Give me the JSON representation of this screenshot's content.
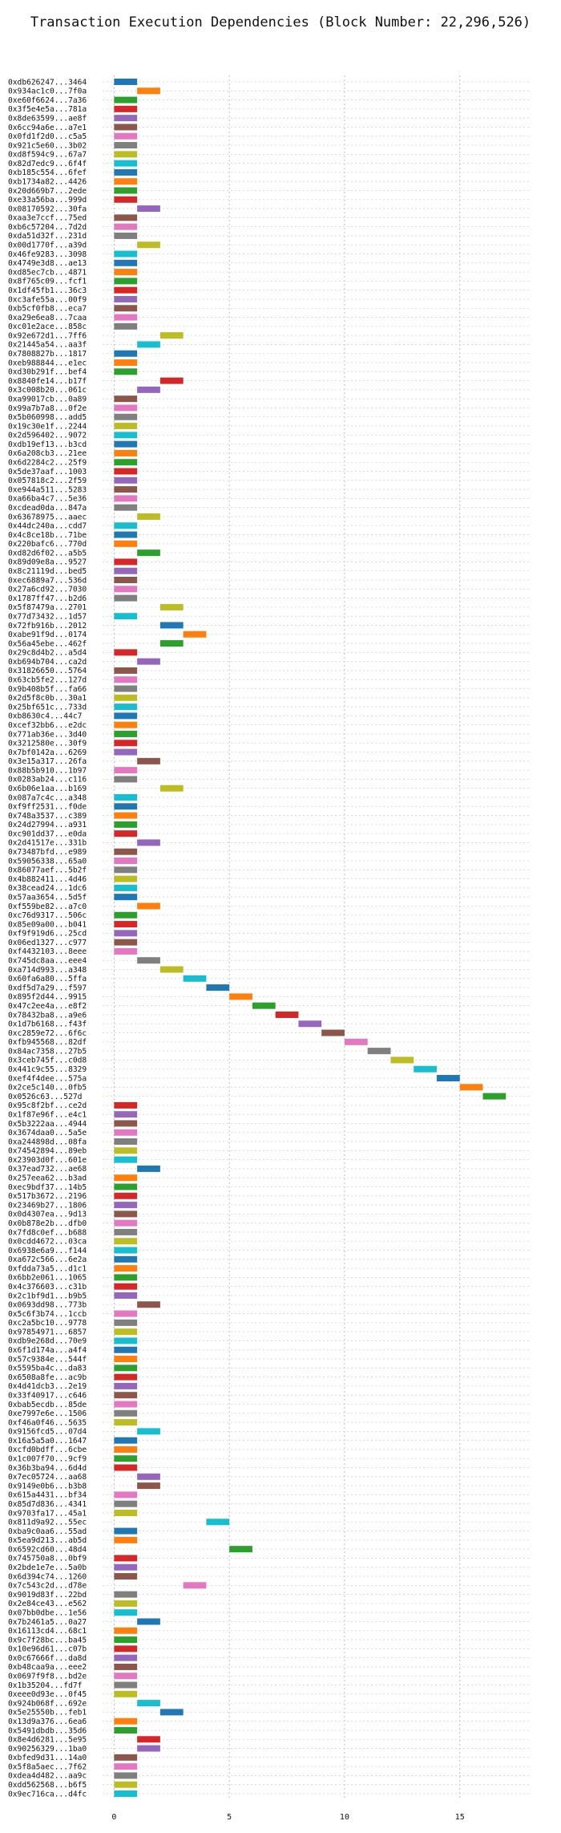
{
  "chart_data": {
    "type": "bar",
    "orientation": "horizontal",
    "title": "Transaction Execution Dependencies (Block Number: 22,296,526)",
    "xlabel": "",
    "ylabel": "",
    "xlim": [
      -0.5,
      18
    ],
    "xticks": [
      0,
      5,
      10,
      15
    ],
    "grid": true,
    "palette": [
      "#1f77b4",
      "#ff7f0e",
      "#2ca02c",
      "#d62728",
      "#9467bd",
      "#8c564b",
      "#e377c2",
      "#7f7f7f",
      "#bcbd22",
      "#17becf"
    ],
    "transactions": [
      {
        "label": "0xdb626247...3464",
        "start": 0
      },
      {
        "label": "0x934ac1c0...7f0a",
        "start": 1
      },
      {
        "label": "0xe60f6624...7a36",
        "start": 0
      },
      {
        "label": "0x3f5e4e5a...781a",
        "start": 0
      },
      {
        "label": "0x8de63599...ae8f",
        "start": 0
      },
      {
        "label": "0x6cc94a6e...a7e1",
        "start": 0
      },
      {
        "label": "0x0fd1f2d0...c5a5",
        "start": 0
      },
      {
        "label": "0x921c5e60...3b02",
        "start": 0
      },
      {
        "label": "0xd8f594c9...67a7",
        "start": 0
      },
      {
        "label": "0x82d7edc9...6f4f",
        "start": 0
      },
      {
        "label": "0xb185c554...6fef",
        "start": 0
      },
      {
        "label": "0xb1734a82...4426",
        "start": 0
      },
      {
        "label": "0x20d669b7...2ede",
        "start": 0
      },
      {
        "label": "0xe33a56ba...999d",
        "start": 0
      },
      {
        "label": "0x08170592...30fa",
        "start": 1
      },
      {
        "label": "0xaa3e7ccf...75ed",
        "start": 0
      },
      {
        "label": "0xb6c57204...7d2d",
        "start": 0
      },
      {
        "label": "0xda51d32f...231d",
        "start": 0
      },
      {
        "label": "0x00d1770f...a39d",
        "start": 1
      },
      {
        "label": "0x46fe9283...3098",
        "start": 0
      },
      {
        "label": "0x4749e3d8...ae13",
        "start": 0
      },
      {
        "label": "0xd85ec7cb...4871",
        "start": 0
      },
      {
        "label": "0x8f765c09...fcf1",
        "start": 0
      },
      {
        "label": "0x1df45fb1...36c3",
        "start": 0
      },
      {
        "label": "0xc3afe55a...00f9",
        "start": 0
      },
      {
        "label": "0xb5cf0fb8...eca7",
        "start": 0
      },
      {
        "label": "0xa29e6ea8...7caa",
        "start": 0
      },
      {
        "label": "0xc01e2ace...858c",
        "start": 0
      },
      {
        "label": "0x92e672d1...7ff6",
        "start": 2
      },
      {
        "label": "0x21445a54...aa3f",
        "start": 1
      },
      {
        "label": "0x7808827b...1817",
        "start": 0
      },
      {
        "label": "0xeb988844...e1ec",
        "start": 0
      },
      {
        "label": "0xd30b291f...bef4",
        "start": 0
      },
      {
        "label": "0x8840fe14...b17f",
        "start": 2
      },
      {
        "label": "0x3c008b20...061c",
        "start": 1
      },
      {
        "label": "0xa99017cb...0a89",
        "start": 0
      },
      {
        "label": "0x99a7b7a8...0f2e",
        "start": 0
      },
      {
        "label": "0x5b060998...add5",
        "start": 0
      },
      {
        "label": "0x19c30e1f...2244",
        "start": 0
      },
      {
        "label": "0x2d596402...9072",
        "start": 0
      },
      {
        "label": "0xdb19ef13...b3cd",
        "start": 0
      },
      {
        "label": "0x6a208cb3...21ee",
        "start": 0
      },
      {
        "label": "0x6d2284c2...25f9",
        "start": 0
      },
      {
        "label": "0x5de37aaf...1003",
        "start": 0
      },
      {
        "label": "0x057818c2...2f59",
        "start": 0
      },
      {
        "label": "0xe944a511...5283",
        "start": 0
      },
      {
        "label": "0xa66ba4c7...5e36",
        "start": 0
      },
      {
        "label": "0xcdead0da...847a",
        "start": 0
      },
      {
        "label": "0x63678975...aaec",
        "start": 1
      },
      {
        "label": "0x44dc240a...cdd7",
        "start": 0
      },
      {
        "label": "0x4c8ce18b...71be",
        "start": 0
      },
      {
        "label": "0x220bafc6...770d",
        "start": 0
      },
      {
        "label": "0xd82d6f02...a5b5",
        "start": 1
      },
      {
        "label": "0x89d09e8a...9527",
        "start": 0
      },
      {
        "label": "0x8c21119d...bed5",
        "start": 0
      },
      {
        "label": "0xec6889a7...536d",
        "start": 0
      },
      {
        "label": "0x27a6cd92...7030",
        "start": 0
      },
      {
        "label": "0x1787ff47...b2d6",
        "start": 0
      },
      {
        "label": "0x5f87479a...2701",
        "start": 2
      },
      {
        "label": "0x77d73432...1d57",
        "start": 0
      },
      {
        "label": "0x72fb916b...2012",
        "start": 2
      },
      {
        "label": "0xabe91f9d...0174",
        "start": 3
      },
      {
        "label": "0x56a45ebe...462f",
        "start": 2
      },
      {
        "label": "0x29c8d4b2...a5d4",
        "start": 0
      },
      {
        "label": "0xb694b704...ca2d",
        "start": 1
      },
      {
        "label": "0x31826650...5764",
        "start": 0
      },
      {
        "label": "0x63cb5fe2...127d",
        "start": 0
      },
      {
        "label": "0x9b408b5f...fa66",
        "start": 0
      },
      {
        "label": "0x2d5f8c0b...30a1",
        "start": 0
      },
      {
        "label": "0x25bf651c...733d",
        "start": 0
      },
      {
        "label": "0xb8630c4...44c7",
        "start": 0
      },
      {
        "label": "0xcef32bb6...e2dc",
        "start": 0
      },
      {
        "label": "0x771ab36e...3d40",
        "start": 0
      },
      {
        "label": "0x3212580e...30f9",
        "start": 0
      },
      {
        "label": "0x7bf0142a...6269",
        "start": 0
      },
      {
        "label": "0x3e15a317...26fa",
        "start": 1
      },
      {
        "label": "0x88b5b910...1b97",
        "start": 0
      },
      {
        "label": "0x0283ab24...c116",
        "start": 0
      },
      {
        "label": "0x6b06e1aa...b169",
        "start": 2
      },
      {
        "label": "0x087a7c4c...a348",
        "start": 0
      },
      {
        "label": "0xf9ff2531...f0de",
        "start": 0
      },
      {
        "label": "0x748a3537...c389",
        "start": 0
      },
      {
        "label": "0x24d27994...a931",
        "start": 0
      },
      {
        "label": "0xc901dd37...e0da",
        "start": 0
      },
      {
        "label": "0x2d41517e...331b",
        "start": 1
      },
      {
        "label": "0x73487bfd...e989",
        "start": 0
      },
      {
        "label": "0x59056338...65a0",
        "start": 0
      },
      {
        "label": "0x86077aef...5b2f",
        "start": 0
      },
      {
        "label": "0x4b882411...4d46",
        "start": 0
      },
      {
        "label": "0x38cead24...1dc6",
        "start": 0
      },
      {
        "label": "0x57aa3654...5d5f",
        "start": 0
      },
      {
        "label": "0xf559be82...a7c0",
        "start": 1
      },
      {
        "label": "0xc76d9317...506c",
        "start": 0
      },
      {
        "label": "0x85e09a00...b041",
        "start": 0
      },
      {
        "label": "0xf9f919d6...25cd",
        "start": 0
      },
      {
        "label": "0x06ed1327...c977",
        "start": 0
      },
      {
        "label": "0xf4432103...8eee",
        "start": 0
      },
      {
        "label": "0x745dc8aa...eee4",
        "start": 1
      },
      {
        "label": "0xa714d993...a348",
        "start": 2
      },
      {
        "label": "0x60fa6a80...5ffa",
        "start": 3
      },
      {
        "label": "0xdf5d7a29...f597",
        "start": 4
      },
      {
        "label": "0x895f2d44...9915",
        "start": 5
      },
      {
        "label": "0x47c2ee4a...e8f2",
        "start": 6
      },
      {
        "label": "0x78432ba8...a9e6",
        "start": 7
      },
      {
        "label": "0x1d7b6168...f43f",
        "start": 8
      },
      {
        "label": "0xc2859e72...6f6c",
        "start": 9
      },
      {
        "label": "0xfb945568...82df",
        "start": 10
      },
      {
        "label": "0x84ac7358...27b5",
        "start": 11
      },
      {
        "label": "0x3ceb745f...c0d8",
        "start": 12
      },
      {
        "label": "0x441c9c55...8329",
        "start": 13
      },
      {
        "label": "0xef4f4dee...575a",
        "start": 14
      },
      {
        "label": "0x2ce5c140...0fb5",
        "start": 15
      },
      {
        "label": "0x0526c63...527d",
        "start": 16
      },
      {
        "label": "0x95c8f2bf...ce2d",
        "start": 0
      },
      {
        "label": "0x1f87e96f...e4c1",
        "start": 0
      },
      {
        "label": "0x5b3222aa...4944",
        "start": 0
      },
      {
        "label": "0x3674daa0...5a5e",
        "start": 0
      },
      {
        "label": "0xa244898d...08fa",
        "start": 0
      },
      {
        "label": "0x74542894...89eb",
        "start": 0
      },
      {
        "label": "0x23903d0f...601e",
        "start": 0
      },
      {
        "label": "0x37ead732...ae68",
        "start": 1
      },
      {
        "label": "0x257eea62...b3ad",
        "start": 0
      },
      {
        "label": "0xec9bdf37...14b5",
        "start": 0
      },
      {
        "label": "0x517b3672...2196",
        "start": 0
      },
      {
        "label": "0x23469b27...1806",
        "start": 0
      },
      {
        "label": "0x0d4307ea...9d13",
        "start": 0
      },
      {
        "label": "0x0b878e2b...dfb0",
        "start": 0
      },
      {
        "label": "0x7fd8c0ef...b688",
        "start": 0
      },
      {
        "label": "0x0cdd4672...03ca",
        "start": 0
      },
      {
        "label": "0x6938e6a9...f144",
        "start": 0
      },
      {
        "label": "0xa672c566...6e2a",
        "start": 0
      },
      {
        "label": "0xfdda73a5...d1c1",
        "start": 0
      },
      {
        "label": "0x6bb2e061...1065",
        "start": 0
      },
      {
        "label": "0x4c376603...c31b",
        "start": 0
      },
      {
        "label": "0x2c1bf9d1...b9b5",
        "start": 0
      },
      {
        "label": "0x0693dd98...773b",
        "start": 1
      },
      {
        "label": "0x5c6f3b74...1ccb",
        "start": 0
      },
      {
        "label": "0xc2a5bc10...9778",
        "start": 0
      },
      {
        "label": "0x97854971...6857",
        "start": 0
      },
      {
        "label": "0xdb9e268d...70e9",
        "start": 0
      },
      {
        "label": "0x6f1d174a...a4f4",
        "start": 0
      },
      {
        "label": "0x57c9384e...544f",
        "start": 0
      },
      {
        "label": "0x5595ba4c...da83",
        "start": 0
      },
      {
        "label": "0x6508a8fe...ac9b",
        "start": 0
      },
      {
        "label": "0x4d41dcb3...2e19",
        "start": 0
      },
      {
        "label": "0x33f40917...c646",
        "start": 0
      },
      {
        "label": "0xbab5ecdb...85de",
        "start": 0
      },
      {
        "label": "0xe7997e6e...1506",
        "start": 0
      },
      {
        "label": "0xf46a0f46...5635",
        "start": 0
      },
      {
        "label": "0x9156fcd5...07d4",
        "start": 1
      },
      {
        "label": "0x16a5a5a0...1647",
        "start": 0
      },
      {
        "label": "0xcfd0bdff...6cbe",
        "start": 0
      },
      {
        "label": "0x1c007f70...9cf9",
        "start": 0
      },
      {
        "label": "0x36b3ba94...6d4d",
        "start": 0
      },
      {
        "label": "0x7ec05724...aa68",
        "start": 1
      },
      {
        "label": "0x9149e0b6...b3b8",
        "start": 1
      },
      {
        "label": "0x615a4431...bf34",
        "start": 0
      },
      {
        "label": "0x85d7d836...4341",
        "start": 0
      },
      {
        "label": "0x9703fa17...45a1",
        "start": 0
      },
      {
        "label": "0x811d9a92...55ec",
        "start": 4
      },
      {
        "label": "0xba9c0aa6...55ad",
        "start": 0
      },
      {
        "label": "0x5ea9d213...ab5d",
        "start": 0
      },
      {
        "label": "0x6592cd60...48d4",
        "start": 5
      },
      {
        "label": "0x745750a8...0bf9",
        "start": 0
      },
      {
        "label": "0x2bde1e7e...5a0b",
        "start": 0
      },
      {
        "label": "0x6d394c74...1260",
        "start": 0
      },
      {
        "label": "0x7c543c2d...d78e",
        "start": 3
      },
      {
        "label": "0x9019d83f...22bd",
        "start": 0
      },
      {
        "label": "0x2e84ce43...e562",
        "start": 0
      },
      {
        "label": "0x07bb0dbe...1e56",
        "start": 0
      },
      {
        "label": "0x7b2461a5...0a27",
        "start": 1
      },
      {
        "label": "0x16113cd4...68c1",
        "start": 0
      },
      {
        "label": "0x9c7f28bc...ba45",
        "start": 0
      },
      {
        "label": "0x10e96d61...c07b",
        "start": 0
      },
      {
        "label": "0x0c67666f...da8d",
        "start": 0
      },
      {
        "label": "0xb48caa9a...eee2",
        "start": 0
      },
      {
        "label": "0x0697f9f8...bd2e",
        "start": 0
      },
      {
        "label": "0x1b35204...fd7f",
        "start": 0
      },
      {
        "label": "0xeee0d93e...0f45",
        "start": 0
      },
      {
        "label": "0x924b068f...692e",
        "start": 1
      },
      {
        "label": "0x5e25550b...feb1",
        "start": 2
      },
      {
        "label": "0x13d9a376...6ea6",
        "start": 0
      },
      {
        "label": "0x5491dbdb...35d6",
        "start": 0
      },
      {
        "label": "0x8e4d6281...5e95",
        "start": 1
      },
      {
        "label": "0x90256329...1ba0",
        "start": 1
      },
      {
        "label": "0xbfed9d31...14a0",
        "start": 0
      },
      {
        "label": "0x5f8a5aec...7f62",
        "start": 0
      },
      {
        "label": "0xdea4d482...aa9c",
        "start": 0
      },
      {
        "label": "0xdd562568...b6f5",
        "start": 0
      },
      {
        "label": "0x9ec716ca...d4fc",
        "start": 0
      }
    ]
  }
}
